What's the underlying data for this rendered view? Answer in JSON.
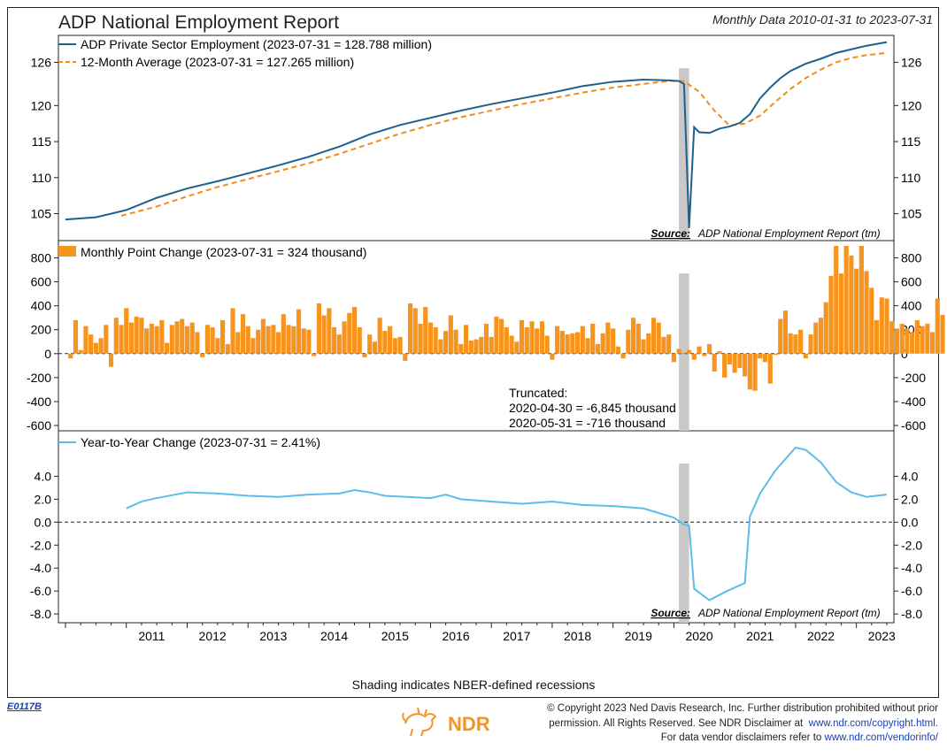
{
  "header": {
    "title": "ADP National Employment Report",
    "date_range": "Monthly Data 2010-01-31 to 2023-07-31"
  },
  "colors": {
    "employment_line": "#1f5f8b",
    "average_line": "#f28c1a",
    "bars": "#f7941d",
    "yoy_line": "#5bbde8",
    "recession_shading": "#c8c8c8"
  },
  "chart_data": [
    {
      "type": "line",
      "title": "",
      "series": [
        {
          "name": "ADP Private Sector Employment (2023-07-31 = 128.788 million)",
          "x": [
            "2010-01",
            "2010-07",
            "2011-01",
            "2011-07",
            "2012-01",
            "2012-07",
            "2013-01",
            "2013-07",
            "2014-01",
            "2014-07",
            "2015-01",
            "2015-07",
            "2016-01",
            "2016-07",
            "2017-01",
            "2017-07",
            "2018-01",
            "2018-07",
            "2019-01",
            "2019-07",
            "2019-12",
            "2020-02",
            "2020-03",
            "2020-04",
            "2020-05",
            "2020-06",
            "2020-08",
            "2020-10",
            "2020-12",
            "2021-02",
            "2021-04",
            "2021-06",
            "2021-08",
            "2021-10",
            "2021-12",
            "2022-03",
            "2022-06",
            "2022-09",
            "2022-12",
            "2023-03",
            "2023-07"
          ],
          "values": [
            104.2,
            104.5,
            105.5,
            107.2,
            108.5,
            109.5,
            110.6,
            111.7,
            112.9,
            114.3,
            116.0,
            117.3,
            118.3,
            119.3,
            120.2,
            121.0,
            121.8,
            122.7,
            123.3,
            123.6,
            123.5,
            123.4,
            123.0,
            103.0,
            117.0,
            116.3,
            116.2,
            116.8,
            117.1,
            117.6,
            118.8,
            121.0,
            122.5,
            123.8,
            124.8,
            125.8,
            126.5,
            127.3,
            127.8,
            128.3,
            128.8
          ]
        },
        {
          "name": "12-Month Average (2023-07-31 = 127.265 million)",
          "x": [
            "2010-12",
            "2011-07",
            "2012-01",
            "2012-07",
            "2013-01",
            "2013-07",
            "2014-01",
            "2014-07",
            "2015-01",
            "2015-07",
            "2016-01",
            "2016-07",
            "2017-01",
            "2017-07",
            "2018-01",
            "2018-07",
            "2019-01",
            "2019-07",
            "2019-12",
            "2020-03",
            "2020-06",
            "2020-09",
            "2020-12",
            "2021-03",
            "2021-06",
            "2021-09",
            "2021-12",
            "2022-03",
            "2022-06",
            "2022-09",
            "2022-12",
            "2023-03",
            "2023-07"
          ],
          "values": [
            104.7,
            106.0,
            107.4,
            108.7,
            109.8,
            110.9,
            112.0,
            113.3,
            114.7,
            116.1,
            117.3,
            118.4,
            119.3,
            120.2,
            121.0,
            121.8,
            122.5,
            123.0,
            123.4,
            123.4,
            121.9,
            119.3,
            117.2,
            117.5,
            118.6,
            120.5,
            122.3,
            123.8,
            125.0,
            126.0,
            126.6,
            127.0,
            127.3
          ]
        }
      ],
      "ylim": [
        102,
        129
      ],
      "yticks": [
        "105",
        "110",
        "115",
        "120",
        "126"
      ],
      "source": "Source:",
      "source_text": "ADP National Employment Report (tm)"
    },
    {
      "type": "bar",
      "title": "",
      "series": [
        {
          "name": "Monthly Point Change (2023-07-31 = 324 thousand)",
          "start": "2010-02",
          "values": [
            -40,
            280,
            30,
            230,
            160,
            90,
            130,
            240,
            -110,
            300,
            240,
            380,
            260,
            310,
            300,
            210,
            250,
            230,
            280,
            90,
            240,
            270,
            290,
            230,
            260,
            180,
            -30,
            240,
            220,
            130,
            280,
            80,
            380,
            180,
            330,
            230,
            130,
            200,
            290,
            230,
            240,
            180,
            330,
            240,
            230,
            370,
            210,
            200,
            -20,
            420,
            320,
            380,
            220,
            160,
            270,
            340,
            390,
            220,
            -30,
            160,
            100,
            300,
            190,
            230,
            130,
            140,
            -60,
            420,
            380,
            250,
            390,
            260,
            220,
            120,
            190,
            320,
            200,
            80,
            240,
            110,
            120,
            140,
            250,
            140,
            310,
            290,
            220,
            150,
            100,
            280,
            220,
            270,
            210,
            270,
            150,
            -50,
            230,
            190,
            160,
            170,
            180,
            230,
            130,
            250,
            80,
            170,
            260,
            210,
            60,
            -40,
            200,
            300,
            250,
            120,
            170,
            300,
            260,
            140,
            160,
            -70,
            40,
            10,
            30,
            -50,
            60,
            -20,
            80,
            -150,
            20,
            -200,
            -90,
            -160,
            -120,
            -190,
            -300,
            -310,
            -40,
            -70,
            -250,
            -10,
            290,
            360,
            170,
            160,
            200,
            -40,
            160,
            260,
            300,
            430,
            650,
            930,
            670,
            920,
            820,
            710,
            920,
            690,
            550,
            280,
            470,
            460,
            270,
            210,
            250,
            210,
            180,
            280,
            230,
            250,
            180,
            460,
            324
          ]
        }
      ],
      "ylim": [
        -600,
        900
      ],
      "yticks": [
        "-600",
        "-400",
        "-200",
        "0",
        "200",
        "400",
        "600",
        "800"
      ],
      "annotation_lines": [
        "Truncated:",
        "2020-04-30 = -6,845 thousand",
        "2020-05-31 = -716 thousand"
      ]
    },
    {
      "type": "line",
      "title": "",
      "series": [
        {
          "name": "Year-to-Year Change (2023-07-31 = 2.41%)",
          "x": [
            "2011-01",
            "2011-04",
            "2011-07",
            "2012-01",
            "2012-07",
            "2013-01",
            "2013-07",
            "2014-01",
            "2014-07",
            "2014-10",
            "2015-01",
            "2015-04",
            "2016-01",
            "2016-04",
            "2016-07",
            "2017-01",
            "2017-07",
            "2018-01",
            "2018-07",
            "2019-01",
            "2019-07",
            "2020-01",
            "2020-03",
            "2020-04",
            "2020-05",
            "2020-08",
            "2020-11",
            "2021-03",
            "2021-04",
            "2021-06",
            "2021-09",
            "2022-01",
            "2022-03",
            "2022-06",
            "2022-09",
            "2022-12",
            "2023-03",
            "2023-07"
          ],
          "values": [
            1.2,
            1.8,
            2.1,
            2.6,
            2.5,
            2.3,
            2.2,
            2.4,
            2.5,
            2.8,
            2.6,
            2.3,
            2.1,
            2.4,
            2.0,
            1.8,
            1.6,
            1.8,
            1.5,
            1.4,
            1.2,
            0.4,
            -0.2,
            -0.3,
            -5.8,
            -6.8,
            -6.1,
            -5.3,
            0.5,
            2.5,
            4.5,
            6.5,
            6.3,
            5.2,
            3.5,
            2.6,
            2.2,
            2.4
          ]
        }
      ],
      "ylim": [
        -8.3,
        7.5
      ],
      "yticks": [
        "-8.0",
        "-6.0",
        "-4.0",
        "-2.0",
        "0.0",
        "2.0",
        "4.0"
      ],
      "source": "Source:",
      "source_text": "ADP National Employment Report (tm)"
    }
  ],
  "x_axis": {
    "ticks": [
      "2011",
      "2012",
      "2013",
      "2014",
      "2015",
      "2016",
      "2017",
      "2018",
      "2019",
      "2020",
      "2021",
      "2022",
      "2023"
    ]
  },
  "recession": {
    "start": "2020-02",
    "end": "2020-04"
  },
  "footer": {
    "shading_note": "Shading indicates NBER-defined recessions",
    "code": "E0117B",
    "logo_text": "NDR",
    "copyright_line1": "© Copyright 2023 Ned Davis Research, Inc. Further distribution prohibited without prior",
    "copyright_line2_text": "permission. All Rights Reserved. See NDR Disclaimer at",
    "copyright_line2_link": "www.ndr.com/copyright.html.",
    "copyright_line3_text": "For data vendor disclaimers refer to",
    "copyright_line3_link": "www.ndr.com/vendorinfo/"
  }
}
